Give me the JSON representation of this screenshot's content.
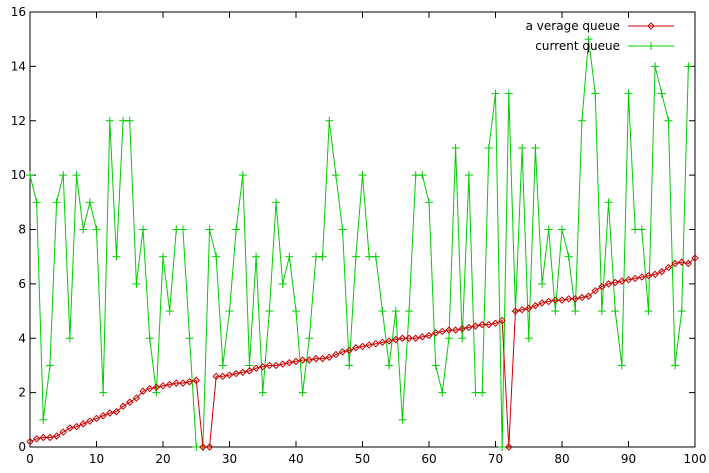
{
  "chart_data": {
    "type": "line",
    "xlim": [
      0,
      100
    ],
    "ylim": [
      0,
      16
    ],
    "xticks": [
      0,
      10,
      20,
      30,
      40,
      50,
      60,
      70,
      80,
      90,
      100
    ],
    "yticks": [
      0,
      2,
      4,
      6,
      8,
      10,
      12,
      14,
      16
    ],
    "grid": false,
    "legend": "top-right",
    "series": [
      {
        "name": "a verage queue",
        "color": "#cc0000",
        "marker": "diamond",
        "values": [
          0.2,
          0.3,
          0.35,
          0.35,
          0.4,
          0.55,
          0.7,
          0.75,
          0.85,
          0.95,
          1.05,
          1.15,
          1.25,
          1.3,
          1.5,
          1.65,
          1.8,
          2.05,
          2.15,
          2.2,
          2.25,
          2.3,
          2.35,
          2.35,
          2.4,
          2.45,
          0,
          0,
          2.6,
          2.6,
          2.65,
          2.7,
          2.75,
          2.8,
          2.9,
          2.95,
          3.0,
          3.0,
          3.05,
          3.1,
          3.15,
          3.2,
          3.2,
          3.25,
          3.25,
          3.3,
          3.4,
          3.5,
          3.55,
          3.65,
          3.7,
          3.75,
          3.8,
          3.85,
          3.9,
          3.95,
          4.0,
          4.0,
          4.0,
          4.05,
          4.1,
          4.2,
          4.25,
          4.3,
          4.3,
          4.35,
          4.4,
          4.45,
          4.5,
          4.5,
          4.55,
          4.65,
          0,
          5.0,
          5.05,
          5.1,
          5.2,
          5.3,
          5.35,
          5.4,
          5.4,
          5.45,
          5.45,
          5.5,
          5.55,
          5.75,
          5.9,
          6.0,
          6.05,
          6.1,
          6.15,
          6.2,
          6.25,
          6.3,
          6.35,
          6.45,
          6.6,
          6.75,
          6.8,
          6.75,
          6.95
        ]
      },
      {
        "name": "current queue",
        "color": "#00cc00",
        "marker": "plus",
        "values": [
          10,
          9,
          1,
          3,
          9,
          10,
          4,
          10,
          8,
          9,
          8,
          2,
          12,
          7,
          12,
          12,
          6,
          8,
          4,
          2,
          7,
          5,
          8,
          8,
          4,
          0,
          0,
          8,
          7,
          3,
          5,
          8,
          10,
          3,
          7,
          2,
          5,
          9,
          6,
          7,
          5,
          2,
          4,
          7,
          7,
          12,
          10,
          8,
          3,
          7,
          10,
          7,
          7,
          5,
          3,
          5,
          1,
          5,
          10,
          10,
          9,
          3,
          2,
          4,
          11,
          4,
          10,
          2,
          2,
          11,
          13,
          0,
          13,
          5,
          11,
          4,
          11,
          6,
          8,
          5,
          8,
          7,
          5,
          12,
          15,
          13,
          5,
          9,
          5,
          3,
          13,
          8,
          8,
          5,
          14,
          13,
          12,
          3,
          5,
          14
        ]
      }
    ]
  }
}
